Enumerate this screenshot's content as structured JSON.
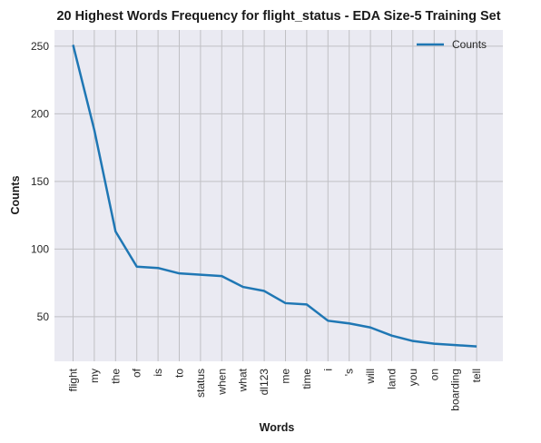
{
  "chart_data": {
    "type": "line",
    "title": "20 Highest Words Frequency for flight_status - EDA Size-5 Training Set",
    "xlabel": "Words",
    "ylabel": "Counts",
    "categories": [
      "flight",
      "my",
      "the",
      "of",
      "is",
      "to",
      "status",
      "when",
      "what",
      "dl123",
      "me",
      "time",
      "i",
      "'s",
      "will",
      "land",
      "you",
      "on",
      "boarding",
      "tell"
    ],
    "series": [
      {
        "name": "Counts",
        "color": "#1f77b4",
        "values": [
          251,
          188,
          113,
          87,
          86,
          82,
          81,
          80,
          72,
          69,
          60,
          59,
          47,
          45,
          42,
          36,
          32,
          30,
          29,
          28
        ]
      }
    ],
    "ylim": [
      17,
      262
    ],
    "yticks": [
      50,
      100,
      150,
      200,
      250
    ],
    "grid": true,
    "legend_position": "top-right",
    "colors": {
      "plot_background": "#eaeaf2",
      "grid": "#c0c0c4"
    }
  }
}
